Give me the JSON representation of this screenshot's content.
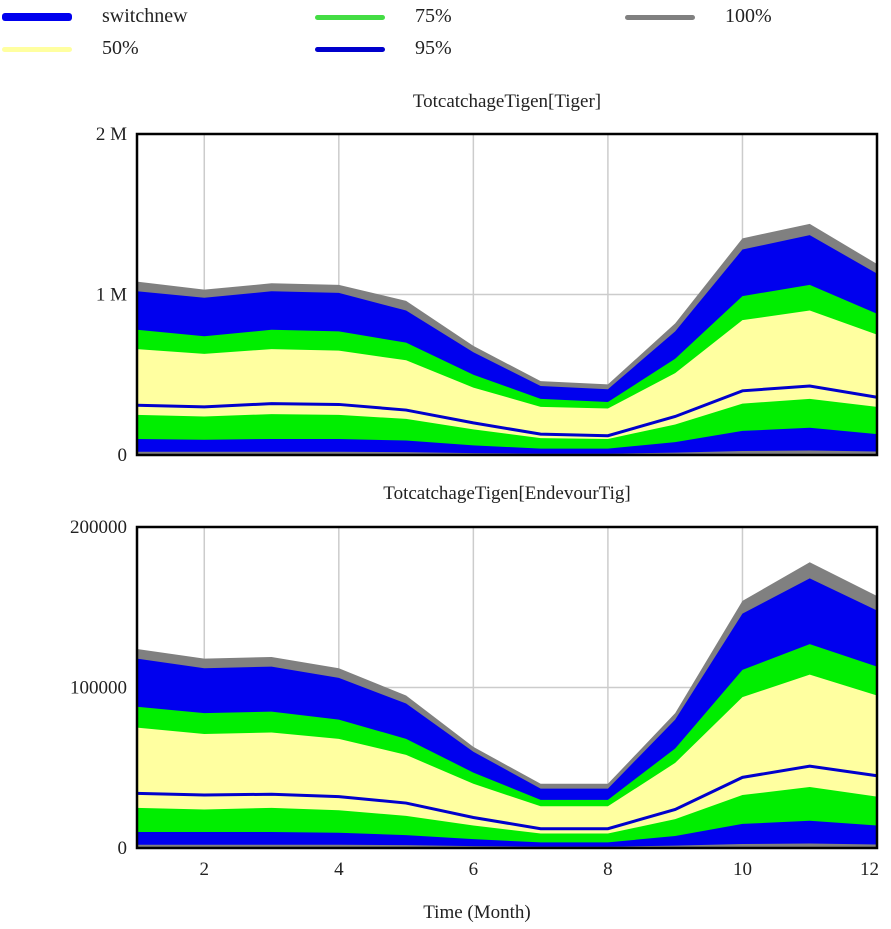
{
  "legend": {
    "items": [
      {
        "label": "switchnew",
        "color": "#0000ee",
        "thick": true
      },
      {
        "label": "75%",
        "color": "#44dd44",
        "thick": false
      },
      {
        "label": "100%",
        "color": "#808080",
        "thick": false
      },
      {
        "label": "50%",
        "color": "#ffffa0",
        "thick": false
      },
      {
        "label": "95%",
        "color": "#0000cc",
        "thick": false
      }
    ]
  },
  "colors": {
    "band_100": "#808080",
    "band_95": "#0000ee",
    "band_75": "#00ee00",
    "band_50": "#ffffa0",
    "median_line": "#0000cc",
    "grid": "#cccccc",
    "frame": "#000000"
  },
  "chart_data": [
    {
      "type": "area",
      "title": "TotcatchageTigen[Tiger]",
      "xlabel": "",
      "x": [
        1,
        2,
        3,
        4,
        5,
        6,
        7,
        8,
        9,
        10,
        11,
        12
      ],
      "xlim": [
        1,
        12
      ],
      "x_ticks": [
        "2",
        "4",
        "6",
        "8",
        "10",
        "12"
      ],
      "ylim": [
        0,
        2000000
      ],
      "y_ticks": [
        "0",
        "1 M",
        "2 M"
      ],
      "y_tick_values": [
        0,
        1000000,
        2000000
      ],
      "series": [
        {
          "name": "100%",
          "lower": [
            0,
            0,
            0,
            0,
            0,
            0,
            0,
            0,
            0,
            0,
            0,
            0
          ],
          "upper": [
            1080000,
            1030000,
            1070000,
            1060000,
            960000,
            680000,
            460000,
            440000,
            820000,
            1350000,
            1440000,
            1190000
          ]
        },
        {
          "name": "95%",
          "lower": [
            20000,
            20000,
            20000,
            20000,
            18000,
            12000,
            8000,
            8000,
            15000,
            25000,
            28000,
            22000
          ],
          "upper": [
            1020000,
            980000,
            1020000,
            1010000,
            900000,
            640000,
            430000,
            410000,
            770000,
            1280000,
            1370000,
            1130000
          ]
        },
        {
          "name": "75%",
          "lower": [
            100000,
            95000,
            100000,
            100000,
            90000,
            60000,
            40000,
            40000,
            80000,
            150000,
            170000,
            130000
          ],
          "upper": [
            780000,
            740000,
            780000,
            770000,
            700000,
            500000,
            350000,
            330000,
            600000,
            990000,
            1060000,
            880000
          ]
        },
        {
          "name": "50%",
          "lower": [
            250000,
            240000,
            255000,
            250000,
            225000,
            160000,
            105000,
            100000,
            190000,
            320000,
            350000,
            300000
          ],
          "upper": [
            660000,
            630000,
            660000,
            650000,
            590000,
            420000,
            300000,
            290000,
            510000,
            840000,
            900000,
            750000
          ]
        },
        {
          "name": "switchnew",
          "values": [
            310000,
            300000,
            320000,
            315000,
            280000,
            200000,
            130000,
            120000,
            240000,
            400000,
            430000,
            360000
          ]
        }
      ]
    },
    {
      "type": "area",
      "title": "TotcatchageTigen[EndevourTig]",
      "xlabel": "Time (Month)",
      "x": [
        1,
        2,
        3,
        4,
        5,
        6,
        7,
        8,
        9,
        10,
        11,
        12
      ],
      "xlim": [
        1,
        12
      ],
      "x_ticks": [
        "2",
        "4",
        "6",
        "8",
        "10",
        "12"
      ],
      "ylim": [
        0,
        200000
      ],
      "y_ticks": [
        "0",
        "100000",
        "200000"
      ],
      "y_tick_values": [
        0,
        100000,
        200000
      ],
      "series": [
        {
          "name": "100%",
          "lower": [
            0,
            0,
            0,
            0,
            0,
            0,
            0,
            0,
            0,
            0,
            0,
            0
          ],
          "upper": [
            124000,
            118000,
            119000,
            112000,
            95000,
            63000,
            40000,
            40000,
            84000,
            154000,
            178000,
            157000
          ]
        },
        {
          "name": "95%",
          "lower": [
            2000,
            2000,
            2000,
            2000,
            1800,
            1200,
            800,
            800,
            1500,
            2500,
            2800,
            2200
          ],
          "upper": [
            118000,
            112000,
            113000,
            106000,
            90000,
            60000,
            37000,
            37000,
            80000,
            146000,
            168000,
            148000
          ]
        },
        {
          "name": "75%",
          "lower": [
            10000,
            10000,
            10000,
            9500,
            8000,
            5500,
            3500,
            3500,
            7500,
            15000,
            17000,
            14000
          ],
          "upper": [
            88000,
            84000,
            85000,
            80000,
            68000,
            47000,
            30000,
            30000,
            62000,
            111000,
            127000,
            113000
          ]
        },
        {
          "name": "50%",
          "lower": [
            25000,
            24000,
            25000,
            23500,
            20000,
            14000,
            9000,
            9000,
            18000,
            33000,
            38000,
            32000
          ],
          "upper": [
            75000,
            71000,
            72000,
            68000,
            58000,
            40000,
            26000,
            26000,
            53000,
            94000,
            108000,
            95000
          ]
        },
        {
          "name": "switchnew",
          "values": [
            34000,
            33000,
            33500,
            32000,
            28000,
            19000,
            12000,
            12000,
            24000,
            44000,
            51000,
            45000
          ]
        }
      ]
    }
  ]
}
